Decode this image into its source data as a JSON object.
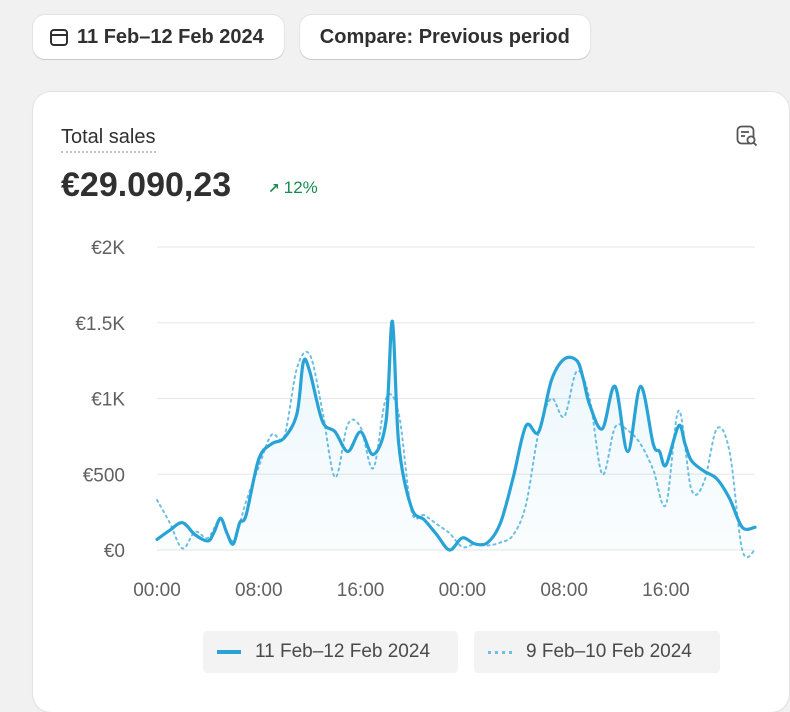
{
  "toolbar": {
    "date_range_label": "11 Feb–12 Feb 2024",
    "compare_label": "Compare: Previous period"
  },
  "metric": {
    "title": "Total sales",
    "value": "€29.090,23",
    "change": "12%",
    "change_color": "#188a4d"
  },
  "chart_data": {
    "type": "line",
    "title": "Total sales",
    "xlabel": "",
    "ylabel": "",
    "x_ticks": [
      "00:00",
      "08:00",
      "16:00",
      "00:00",
      "08:00",
      "16:00"
    ],
    "y_ticks": [
      "€0",
      "€500",
      "€1K",
      "€1.5K",
      "€2K"
    ],
    "ylim": [
      0,
      2000
    ],
    "grid": true,
    "legend_position": "bottom",
    "x_unit": "hours",
    "series": [
      {
        "name": "11 Feb–12 Feb 2024",
        "style": "solid",
        "color": "#29a3d6",
        "x": [
          0,
          1,
          2,
          3,
          4,
          4.5,
          5,
          5.5,
          6,
          6.5,
          7,
          8,
          9,
          10,
          11,
          11.5,
          12,
          13,
          14,
          15,
          16,
          17,
          18,
          18.5,
          19,
          20,
          21,
          22,
          23,
          24,
          25,
          26,
          27,
          28,
          29,
          30,
          31,
          32,
          33,
          33.5,
          34,
          35,
          36,
          37,
          38,
          39,
          39.5,
          40,
          41,
          41.5,
          42,
          43,
          44,
          45,
          46,
          47
        ],
        "values": [
          70,
          130,
          180,
          100,
          60,
          120,
          210,
          110,
          40,
          180,
          230,
          600,
          700,
          740,
          900,
          1240,
          1180,
          850,
          780,
          650,
          780,
          630,
          850,
          1510,
          700,
          280,
          200,
          100,
          0,
          80,
          40,
          50,
          180,
          480,
          820,
          780,
          1120,
          1260,
          1250,
          1130,
          960,
          800,
          1080,
          650,
          1080,
          700,
          650,
          560,
          820,
          700,
          590,
          520,
          470,
          340,
          150,
          150
        ]
      },
      {
        "name": "9 Feb–10 Feb 2024",
        "style": "dotted",
        "color": "#6dbfe3",
        "x": [
          0,
          1,
          2,
          3,
          4,
          5,
          6,
          7,
          8,
          9,
          10,
          11,
          12,
          13,
          14,
          15,
          16,
          17,
          18,
          19,
          20,
          21,
          22,
          23,
          24,
          25,
          26,
          27,
          28,
          29,
          30,
          31,
          32,
          33,
          34,
          35,
          36,
          37,
          38,
          39,
          40,
          41,
          42,
          43,
          44,
          45,
          46,
          47
        ],
        "values": [
          330,
          180,
          10,
          120,
          80,
          200,
          60,
          320,
          550,
          760,
          750,
          1200,
          1290,
          920,
          480,
          830,
          810,
          540,
          1000,
          900,
          260,
          230,
          170,
          110,
          20,
          40,
          30,
          50,
          100,
          300,
          780,
          1000,
          880,
          1180,
          1000,
          500,
          810,
          790,
          700,
          530,
          300,
          920,
          400,
          450,
          800,
          650,
          0,
          0
        ]
      }
    ]
  }
}
